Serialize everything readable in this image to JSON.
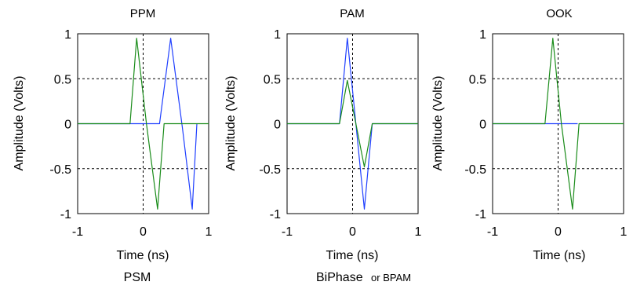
{
  "chart_data": [
    {
      "type": "line",
      "title": "PPM",
      "xlabel": "Time (ns)",
      "ylabel": "Amplitude (Volts)",
      "xlim": [
        -1,
        1
      ],
      "ylim": [
        -1,
        1
      ],
      "xticks": [
        "-1",
        "0",
        "1"
      ],
      "yticks": [
        "1",
        "0.5",
        "0",
        "-0.5",
        "-1"
      ],
      "grid": "dashed lines at x = 0, y = 0.5 and y = -0.5",
      "series": [
        {
          "color": "#1f3fff",
          "x": [
            -1.0,
            -0.05,
            0.12,
            0.25,
            0.42,
            0.6,
            0.75,
            0.82
          ],
          "y": [
            0,
            0,
            0,
            0,
            0.95,
            -0.05,
            -0.95,
            0
          ]
        },
        {
          "color": "#1a8c1a",
          "x": [
            -1.0,
            -0.2,
            -0.1,
            0.05,
            0.22,
            0.32,
            1.0
          ],
          "y": [
            0,
            0,
            0.95,
            0.0,
            -0.95,
            0,
            0
          ]
        }
      ],
      "caption": "PSM"
    },
    {
      "type": "line",
      "title": "PAM",
      "xlabel": "Time (ns)",
      "ylabel": "Amplitude (Volts)",
      "xlim": [
        -1,
        1
      ],
      "ylim": [
        -1,
        1
      ],
      "xticks": [
        "-1",
        "0",
        "1"
      ],
      "yticks": [
        "1",
        "0.5",
        "0",
        "-0.5",
        "-1"
      ],
      "grid": "dashed lines at x = 0, y = 0.5 and y = -0.5",
      "series": [
        {
          "color": "#1f3fff",
          "x": [
            -1.0,
            -0.2,
            -0.08,
            0.05,
            0.18,
            0.3,
            1.0
          ],
          "y": [
            0,
            0,
            0.95,
            0.0,
            -0.95,
            0,
            0
          ]
        },
        {
          "color": "#1a8c1a",
          "x": [
            -1.0,
            -0.2,
            -0.08,
            0.05,
            0.18,
            0.3,
            1.0
          ],
          "y": [
            0,
            0,
            0.48,
            0.0,
            -0.48,
            0,
            0
          ]
        }
      ],
      "caption": "BiPhase",
      "caption_suffix": "or BPAM"
    },
    {
      "type": "line",
      "title": "OOK",
      "xlabel": "Time (ns)",
      "ylabel": "Amplitude (Volts)",
      "xlim": [
        -1,
        1
      ],
      "ylim": [
        -1,
        1
      ],
      "xticks": [
        "-1",
        "0",
        "1"
      ],
      "yticks": [
        "1",
        "0.5",
        "0",
        "-0.5",
        "-1"
      ],
      "grid": "dashed lines at x = 0, y = 0.5 and y = -0.5",
      "series": [
        {
          "color": "#1f3fff",
          "x": [
            -1.0,
            0.3
          ],
          "y": [
            0,
            0
          ]
        },
        {
          "color": "#1a8c1a",
          "x": [
            -1.0,
            -0.2,
            -0.08,
            0.05,
            0.22,
            0.32,
            1.0
          ],
          "y": [
            0,
            0,
            0.95,
            0.0,
            -0.95,
            0,
            0
          ]
        }
      ]
    }
  ]
}
